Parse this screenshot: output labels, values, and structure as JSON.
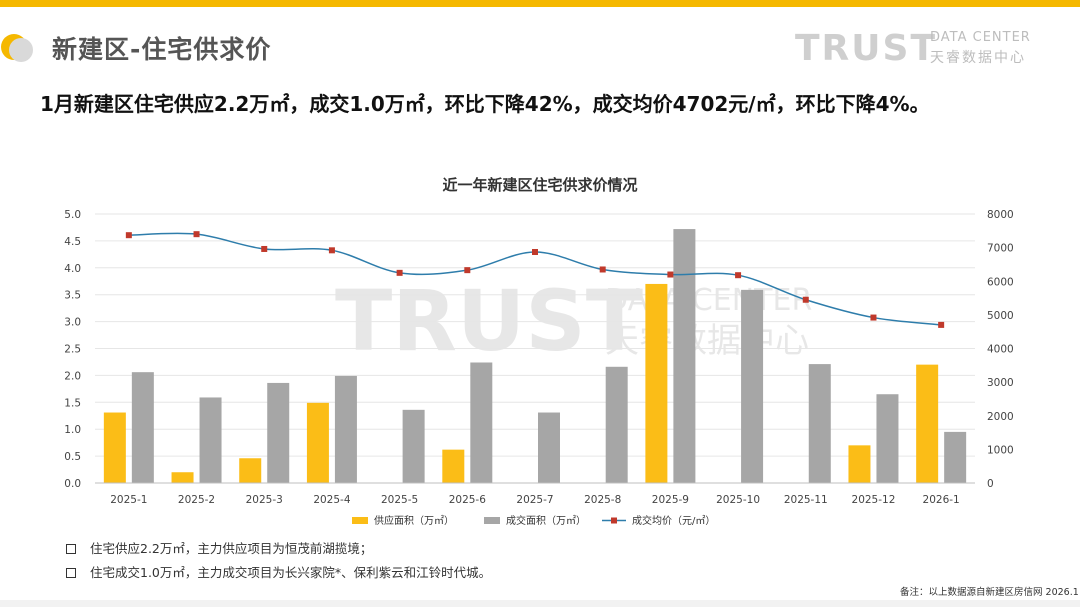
{
  "page": {
    "title": "新建区-住宅供求价",
    "headline": "1月新建区住宅供应2.2万㎡，成交1.0万㎡，环比下降42%，成交均价4702元/㎡，环比下降4%。",
    "brand": {
      "big": "TRUST",
      "small_en": "DATA CENTER",
      "small_cn": "天睿数据中心"
    },
    "watermark": {
      "big": "TRUST",
      "en": "DATA CENTER",
      "cn": "天睿数据中心"
    },
    "notes": [
      "住宅供应2.2万㎡，主力供应项目为恒茂前湖揽境；",
      "住宅成交1.0万㎡，主力成交项目为长兴家院*、保利紫云和江铃时代城。"
    ],
    "footnote": "备注：以上数据源自新建区房信网 2026.1"
  },
  "colors": {
    "accent": "#f5b800",
    "supply": "#fbbd17",
    "deal": "#a6a6a6",
    "price_line": "#2e7dab",
    "price_marker": "#c0392b"
  },
  "chart_data": {
    "type": "bar",
    "title": "近一年新建区住宅供求价情况",
    "categories": [
      "2025-1",
      "2025-2",
      "2025-3",
      "2025-4",
      "2025-5",
      "2025-6",
      "2025-7",
      "2025-8",
      "2025-9",
      "2025-10",
      "2025-11",
      "2025-12",
      "2026-1"
    ],
    "ylim_left": [
      0,
      5.0
    ],
    "yticks_left": [
      "0.0",
      "0.5",
      "1.0",
      "1.5",
      "2.0",
      "2.5",
      "3.0",
      "3.5",
      "4.0",
      "4.5",
      "5.0"
    ],
    "ylim_right": [
      0,
      8000
    ],
    "yticks_right": [
      "0",
      "1000",
      "2000",
      "3000",
      "4000",
      "5000",
      "6000",
      "7000",
      "8000"
    ],
    "series": [
      {
        "name": "供应面积（万㎡）",
        "axis": "left",
        "kind": "bar",
        "values": [
          1.31,
          0.2,
          0.46,
          1.49,
          0,
          0.62,
          0,
          0,
          3.7,
          0,
          0,
          0.7,
          2.2
        ]
      },
      {
        "name": "成交面积（万㎡）",
        "axis": "left",
        "kind": "bar",
        "values": [
          2.06,
          1.59,
          1.86,
          1.99,
          1.36,
          2.24,
          1.31,
          2.16,
          4.72,
          3.59,
          2.21,
          1.65,
          0.95
        ]
      },
      {
        "name": "成交均价（元/㎡）",
        "axis": "right",
        "kind": "line",
        "values": [
          7370,
          7400,
          6960,
          6920,
          6250,
          6330,
          6870,
          6350,
          6200,
          6180,
          5450,
          4920,
          4702
        ]
      }
    ],
    "grid": true,
    "legend": "bottom"
  }
}
